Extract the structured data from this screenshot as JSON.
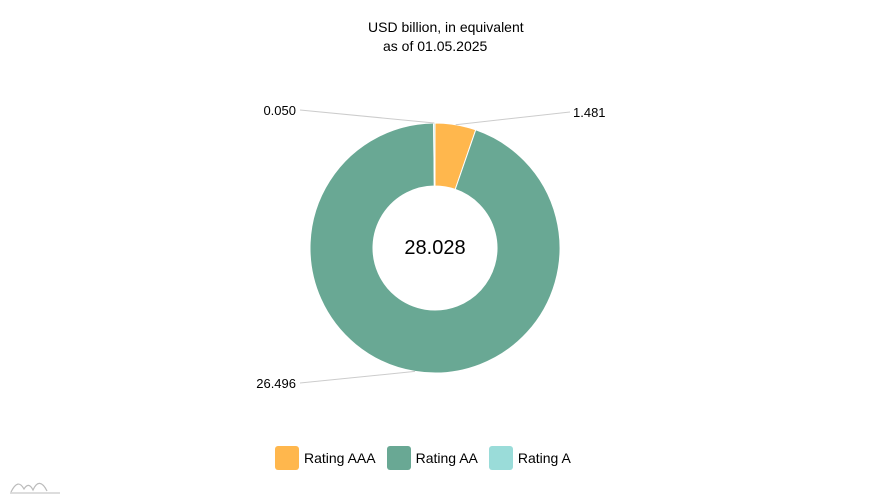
{
  "chart_data": {
    "type": "pie",
    "variant": "donut",
    "title": "USD billion, in equivalent",
    "subtitle": "as of 01.05.2025",
    "center_label": "28.028",
    "slices": [
      {
        "name": "Rating AAA",
        "value": 1.481,
        "label": "1.481",
        "color": "#FFB74D"
      },
      {
        "name": "Rating AA",
        "value": 26.496,
        "label": "26.496",
        "color": "#69A894"
      },
      {
        "name": "Rating A",
        "value": 0.05,
        "label": "0.050",
        "color": "#9ADCD9"
      }
    ],
    "legend_position": "bottom"
  },
  "legend": {
    "items": [
      {
        "label": "Rating AAA",
        "color": "#FFB74D"
      },
      {
        "label": "Rating AA",
        "color": "#69A894"
      },
      {
        "label": "Rating A",
        "color": "#9ADCD9"
      }
    ]
  }
}
